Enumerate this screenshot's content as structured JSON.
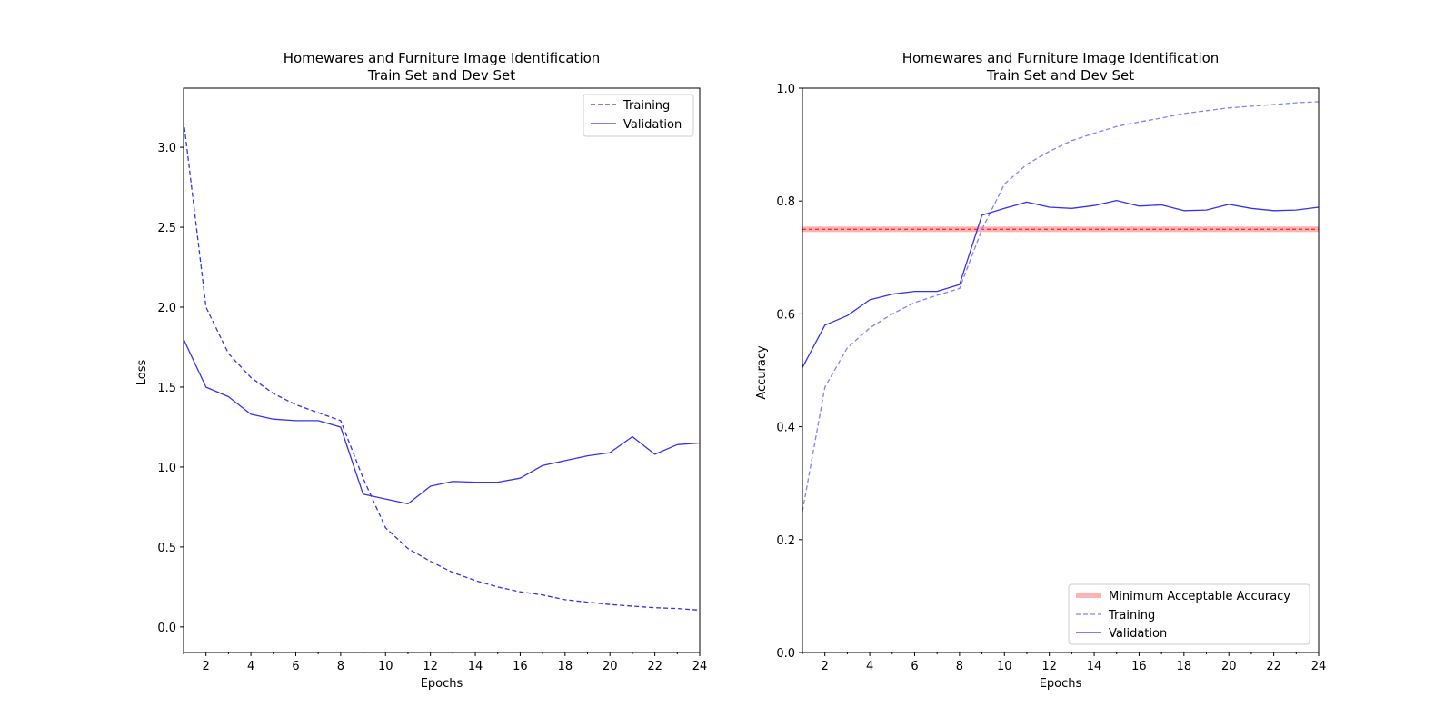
{
  "chart_data": [
    {
      "type": "line",
      "title": [
        "Homewares and Furniture Image Identification",
        "Train Set and Dev Set"
      ],
      "xlabel": "Epochs",
      "ylabel": "Loss",
      "xlim": [
        1,
        24
      ],
      "ylim": [
        -0.16,
        3.37
      ],
      "xticks": [
        2,
        4,
        6,
        8,
        10,
        12,
        14,
        16,
        18,
        20,
        22,
        24
      ],
      "yticks": [
        0.0,
        0.5,
        1.0,
        1.5,
        2.0,
        2.5,
        3.0
      ],
      "ytick_labels": [
        "0.0",
        "0.5",
        "1.0",
        "1.5",
        "2.0",
        "2.5",
        "3.0"
      ],
      "legend_position": "upper-right",
      "x": [
        1,
        2,
        3,
        4,
        5,
        6,
        7,
        8,
        9,
        10,
        11,
        12,
        13,
        14,
        15,
        16,
        17,
        18,
        19,
        20,
        21,
        22,
        23,
        24
      ],
      "series": [
        {
          "name": "Training",
          "style": "dashed",
          "color": "#3333ee",
          "values": [
            3.17,
            2.0,
            1.71,
            1.56,
            1.46,
            1.39,
            1.34,
            1.29,
            0.93,
            0.62,
            0.49,
            0.41,
            0.34,
            0.29,
            0.25,
            0.22,
            0.2,
            0.17,
            0.155,
            0.14,
            0.13,
            0.12,
            0.115,
            0.105
          ]
        },
        {
          "name": "Validation",
          "style": "solid",
          "color": "#3333ee",
          "values": [
            1.8,
            1.5,
            1.44,
            1.33,
            1.3,
            1.29,
            1.29,
            1.25,
            0.83,
            0.8,
            0.77,
            0.88,
            0.91,
            0.905,
            0.905,
            0.93,
            1.01,
            1.04,
            1.07,
            1.09,
            1.19,
            1.08,
            1.14,
            1.15
          ]
        }
      ]
    },
    {
      "type": "line",
      "title": [
        "Homewares and Furniture Image Identification",
        "Train Set and Dev Set"
      ],
      "xlabel": "Epochs",
      "ylabel": "Accuracy",
      "xlim": [
        1,
        24
      ],
      "ylim": [
        0.0,
        1.0
      ],
      "xticks": [
        2,
        4,
        6,
        8,
        10,
        12,
        14,
        16,
        18,
        20,
        22,
        24
      ],
      "yticks": [
        0.0,
        0.2,
        0.4,
        0.6,
        0.8,
        1.0
      ],
      "ytick_labels": [
        "0.0",
        "0.2",
        "0.4",
        "0.6",
        "0.8",
        "1.0"
      ],
      "legend_position": "lower-right",
      "x": [
        1,
        2,
        3,
        4,
        5,
        6,
        7,
        8,
        9,
        10,
        11,
        12,
        13,
        14,
        15,
        16,
        17,
        18,
        19,
        20,
        21,
        22,
        23,
        24
      ],
      "hline": {
        "name": "Minimum Acceptable Accuracy",
        "value": 0.75,
        "color": "#ff0000"
      },
      "series": [
        {
          "name": "Training",
          "style": "dashed",
          "color": "#8080ff",
          "values": [
            0.25,
            0.47,
            0.54,
            0.575,
            0.6,
            0.62,
            0.633,
            0.645,
            0.75,
            0.83,
            0.865,
            0.888,
            0.907,
            0.92,
            0.932,
            0.94,
            0.947,
            0.955,
            0.96,
            0.965,
            0.968,
            0.971,
            0.974,
            0.976
          ]
        },
        {
          "name": "Validation",
          "style": "solid",
          "color": "#3333ee",
          "values": [
            0.505,
            0.58,
            0.597,
            0.625,
            0.635,
            0.64,
            0.64,
            0.652,
            0.775,
            0.787,
            0.798,
            0.789,
            0.787,
            0.792,
            0.801,
            0.791,
            0.793,
            0.783,
            0.784,
            0.794,
            0.787,
            0.783,
            0.784,
            0.789
          ]
        }
      ]
    }
  ]
}
